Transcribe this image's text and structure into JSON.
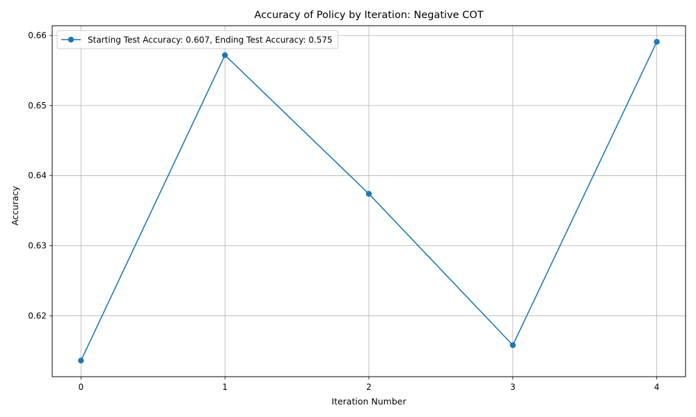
{
  "chart_data": {
    "type": "line",
    "title": "Accuracy of Policy by Iteration: Negative COT",
    "xlabel": "Iteration Number",
    "ylabel": "Accuracy",
    "x": [
      0,
      1,
      2,
      3,
      4
    ],
    "xlim": [
      -0.2,
      4.2
    ],
    "ylim": [
      0.6113,
      0.6614
    ],
    "xticks": [
      "0",
      "1",
      "2",
      "3",
      "4"
    ],
    "yticks": [
      0.62,
      0.63,
      0.64,
      0.65,
      0.66
    ],
    "ytick_labels": [
      "0.62",
      "0.63",
      "0.64",
      "0.65",
      "0.66"
    ],
    "grid": true,
    "legend_position": "top-left",
    "series": [
      {
        "name": "Starting Test Accuracy: 0.607, Ending Test Accuracy: 0.575",
        "color": "#1f77b4",
        "marker": "circle",
        "values": [
          0.6136,
          0.6572,
          0.6374,
          0.6158,
          0.6591
        ]
      }
    ]
  }
}
